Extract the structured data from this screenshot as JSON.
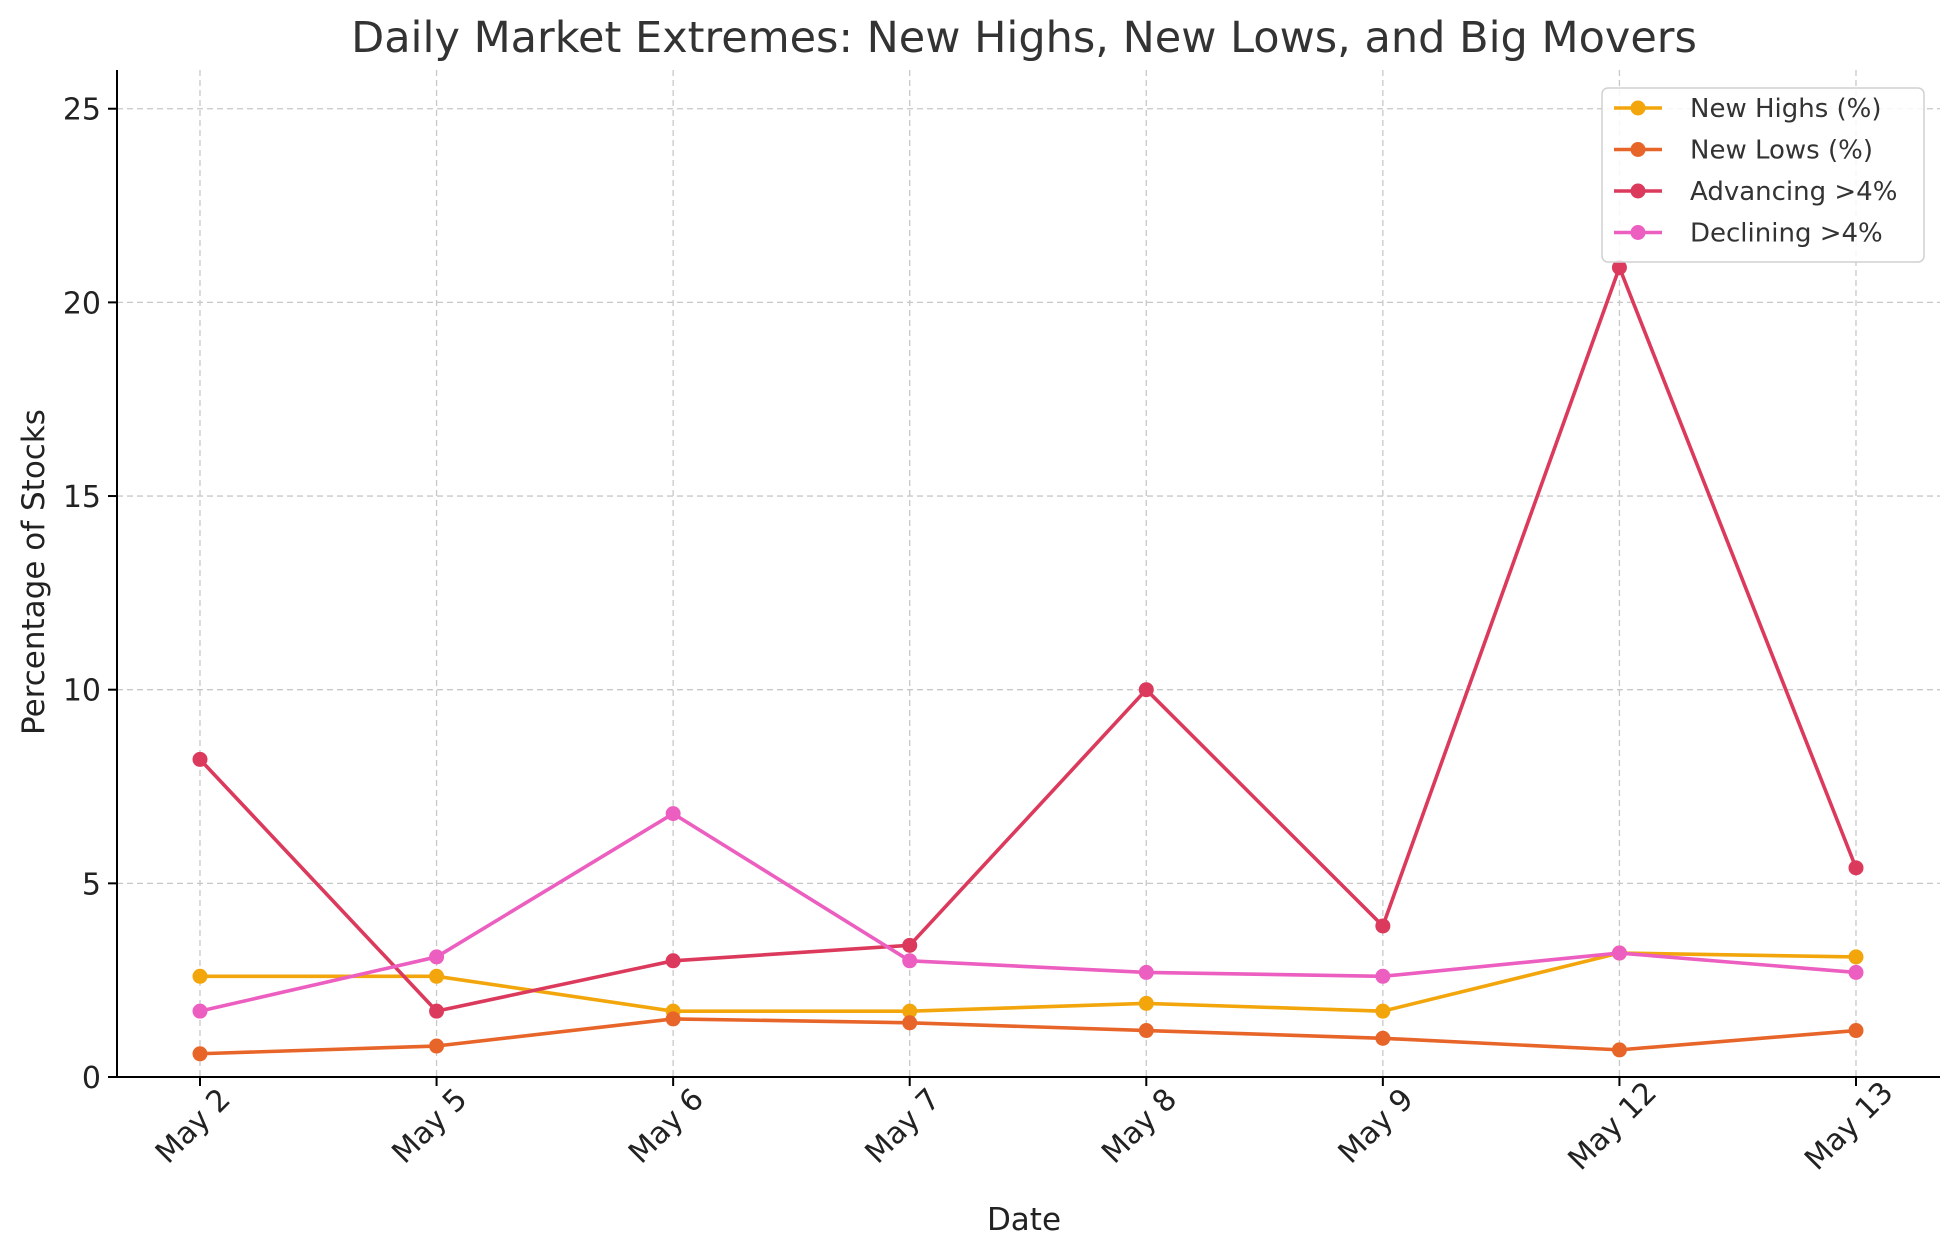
{
  "chart_data": {
    "type": "line",
    "title": "Daily Market Extremes: New Highs, New Lows, and Big Movers",
    "xlabel": "Date",
    "ylabel": "Percentage of Stocks",
    "categories": [
      "May 2",
      "May 5",
      "May 6",
      "May 7",
      "May 8",
      "May 9",
      "May 12",
      "May 13"
    ],
    "ylim": [
      0,
      26
    ],
    "yticks": [
      0,
      5,
      10,
      15,
      20,
      25
    ],
    "grid": true,
    "legend_position": "top-right",
    "series": [
      {
        "name": "New Highs (%)",
        "color": "#f2a60c",
        "values": [
          2.6,
          2.6,
          1.7,
          1.7,
          1.9,
          1.7,
          3.2,
          3.1
        ]
      },
      {
        "name": "New Lows (%)",
        "color": "#e8652a",
        "values": [
          0.6,
          0.8,
          1.5,
          1.4,
          1.2,
          1.0,
          0.7,
          1.2
        ]
      },
      {
        "name": "Advancing >4%",
        "color": "#dc3a5c",
        "values": [
          8.2,
          1.7,
          3.0,
          3.4,
          10.0,
          3.9,
          20.9,
          5.4
        ]
      },
      {
        "name": "Declining >4%",
        "color": "#ec5ec0",
        "values": [
          1.7,
          3.1,
          6.8,
          3.0,
          2.7,
          2.6,
          3.2,
          2.7
        ]
      }
    ]
  }
}
